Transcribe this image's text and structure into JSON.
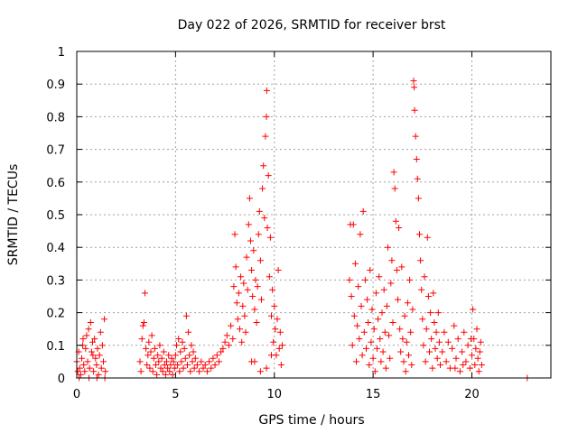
{
  "chart_data": {
    "type": "scatter",
    "title": "Day 022 of 2026, SRMTID for receiver brst",
    "xlabel": "GPS time / hours",
    "ylabel": "SRMTID / TECUs",
    "xlim": [
      0,
      24
    ],
    "ylim": [
      0,
      1
    ],
    "xticks": [
      0,
      5,
      10,
      15,
      20
    ],
    "xtick_labels": [
      "0",
      "5",
      "10",
      "15",
      "20"
    ],
    "yticks": [
      0,
      0.1,
      0.2,
      0.3,
      0.4,
      0.5,
      0.6,
      0.7,
      0.8,
      0.9,
      1
    ],
    "ytick_labels": [
      "0",
      "0.1",
      "0.2",
      "0.3",
      "0.4",
      "0.5",
      "0.6",
      "0.7",
      "0.8",
      "0.9",
      "1"
    ],
    "grid": true,
    "marker": "+",
    "series": [
      {
        "name": "SRMTID",
        "color": "#ff0000",
        "points": [
          [
            0.0,
            0.05
          ],
          [
            0.05,
            0.02
          ],
          [
            0.1,
            0.08
          ],
          [
            0.15,
            0.03
          ],
          [
            0.2,
            0.01
          ],
          [
            0.25,
            0.06
          ],
          [
            0.3,
            0.1
          ],
          [
            0.35,
            0.04
          ],
          [
            0.4,
            0.02
          ],
          [
            0.45,
            0.09
          ],
          [
            0.5,
            0.13
          ],
          [
            0.55,
            0.05
          ],
          [
            0.6,
            0.15
          ],
          [
            0.65,
            0.03
          ],
          [
            0.7,
            0.17
          ],
          [
            0.75,
            0.08
          ],
          [
            0.8,
            0.11
          ],
          [
            0.85,
            0.02
          ],
          [
            0.9,
            0.12
          ],
          [
            0.95,
            0.06
          ],
          [
            1.0,
            0.04
          ],
          [
            1.05,
            0.09
          ],
          [
            1.1,
            0.01
          ],
          [
            1.15,
            0.07
          ],
          [
            1.2,
            0.14
          ],
          [
            1.25,
            0.03
          ],
          [
            1.3,
            0.1
          ],
          [
            1.35,
            0.05
          ],
          [
            1.4,
            0.18
          ],
          [
            1.45,
            0.02
          ],
          [
            0.12,
            0.0
          ],
          [
            0.62,
            0.0
          ],
          [
            1.02,
            0.0
          ],
          [
            1.42,
            0.0
          ],
          [
            0.32,
            0.12
          ],
          [
            0.82,
            0.07
          ],
          [
            3.2,
            0.05
          ],
          [
            3.25,
            0.02
          ],
          [
            3.3,
            0.12
          ],
          [
            3.35,
            0.16
          ],
          [
            3.4,
            0.17
          ],
          [
            3.45,
            0.26
          ],
          [
            3.5,
            0.09
          ],
          [
            3.55,
            0.04
          ],
          [
            3.6,
            0.07
          ],
          [
            3.65,
            0.11
          ],
          [
            3.7,
            0.03
          ],
          [
            3.75,
            0.08
          ],
          [
            3.8,
            0.13
          ],
          [
            3.85,
            0.02
          ],
          [
            3.9,
            0.06
          ],
          [
            3.95,
            0.09
          ],
          [
            4.0,
            0.04
          ],
          [
            4.05,
            0.01
          ],
          [
            4.1,
            0.07
          ],
          [
            4.15,
            0.05
          ],
          [
            4.2,
            0.1
          ],
          [
            4.25,
            0.03
          ],
          [
            4.3,
            0.06
          ],
          [
            4.35,
            0.02
          ],
          [
            4.4,
            0.08
          ],
          [
            4.45,
            0.04
          ],
          [
            4.5,
            0.01
          ],
          [
            4.55,
            0.05
          ],
          [
            4.6,
            0.03
          ],
          [
            4.65,
            0.07
          ],
          [
            4.7,
            0.02
          ],
          [
            4.75,
            0.04
          ],
          [
            4.8,
            0.06
          ],
          [
            4.85,
            0.01
          ],
          [
            4.9,
            0.05
          ],
          [
            4.95,
            0.03
          ],
          [
            5.0,
            0.07
          ],
          [
            5.05,
            0.1
          ],
          [
            5.1,
            0.04
          ],
          [
            5.15,
            0.12
          ],
          [
            5.2,
            0.02
          ],
          [
            5.25,
            0.08
          ],
          [
            5.3,
            0.05
          ],
          [
            5.35,
            0.11
          ],
          [
            5.4,
            0.03
          ],
          [
            5.45,
            0.09
          ],
          [
            5.5,
            0.06
          ],
          [
            5.55,
            0.19
          ],
          [
            5.6,
            0.04
          ],
          [
            5.65,
            0.14
          ],
          [
            5.7,
            0.07
          ],
          [
            5.75,
            0.02
          ],
          [
            5.8,
            0.1
          ],
          [
            5.85,
            0.05
          ],
          [
            5.9,
            0.08
          ],
          [
            5.95,
            0.03
          ],
          [
            6.0,
            0.06
          ],
          [
            6.1,
            0.04
          ],
          [
            6.2,
            0.02
          ],
          [
            6.3,
            0.05
          ],
          [
            6.4,
            0.03
          ],
          [
            6.5,
            0.04
          ],
          [
            6.6,
            0.02
          ],
          [
            6.7,
            0.05
          ],
          [
            6.8,
            0.03
          ],
          [
            6.9,
            0.06
          ],
          [
            7.0,
            0.04
          ],
          [
            7.1,
            0.07
          ],
          [
            7.2,
            0.05
          ],
          [
            7.3,
            0.08
          ],
          [
            7.4,
            0.09
          ],
          [
            7.5,
            0.11
          ],
          [
            7.6,
            0.13
          ],
          [
            7.7,
            0.1
          ],
          [
            7.8,
            0.16
          ],
          [
            7.9,
            0.12
          ],
          [
            7.95,
            0.28
          ],
          [
            8.0,
            0.44
          ],
          [
            8.05,
            0.34
          ],
          [
            8.1,
            0.23
          ],
          [
            8.15,
            0.18
          ],
          [
            8.2,
            0.26
          ],
          [
            8.25,
            0.15
          ],
          [
            8.3,
            0.31
          ],
          [
            8.35,
            0.11
          ],
          [
            8.4,
            0.22
          ],
          [
            8.45,
            0.29
          ],
          [
            8.5,
            0.19
          ],
          [
            8.55,
            0.14
          ],
          [
            8.6,
            0.37
          ],
          [
            8.65,
            0.27
          ],
          [
            8.7,
            0.47
          ],
          [
            8.75,
            0.55
          ],
          [
            8.8,
            0.42
          ],
          [
            8.85,
            0.33
          ],
          [
            8.9,
            0.25
          ],
          [
            8.95,
            0.39
          ],
          [
            9.0,
            0.21
          ],
          [
            9.05,
            0.3
          ],
          [
            9.1,
            0.17
          ],
          [
            9.15,
            0.28
          ],
          [
            9.2,
            0.44
          ],
          [
            9.25,
            0.51
          ],
          [
            9.3,
            0.36
          ],
          [
            9.35,
            0.24
          ],
          [
            9.4,
            0.58
          ],
          [
            9.45,
            0.65
          ],
          [
            9.5,
            0.49
          ],
          [
            9.55,
            0.74
          ],
          [
            9.6,
            0.8
          ],
          [
            9.62,
            0.88
          ],
          [
            9.65,
            0.46
          ],
          [
            9.7,
            0.62
          ],
          [
            9.75,
            0.31
          ],
          [
            9.8,
            0.43
          ],
          [
            9.85,
            0.19
          ],
          [
            9.9,
            0.27
          ],
          [
            9.95,
            0.11
          ],
          [
            10.0,
            0.22
          ],
          [
            10.05,
            0.15
          ],
          [
            10.1,
            0.07
          ],
          [
            10.15,
            0.18
          ],
          [
            10.2,
            0.33
          ],
          [
            10.25,
            0.09
          ],
          [
            10.3,
            0.14
          ],
          [
            10.35,
            0.04
          ],
          [
            9.0,
            0.05
          ],
          [
            9.3,
            0.02
          ],
          [
            9.6,
            0.03
          ],
          [
            10.4,
            0.1
          ],
          [
            8.85,
            0.05
          ],
          [
            9.85,
            0.07
          ],
          [
            13.8,
            0.3
          ],
          [
            13.85,
            0.47
          ],
          [
            13.9,
            0.25
          ],
          [
            13.95,
            0.1
          ],
          [
            14.0,
            0.47
          ],
          [
            14.05,
            0.19
          ],
          [
            14.1,
            0.35
          ],
          [
            14.15,
            0.05
          ],
          [
            14.2,
            0.16
          ],
          [
            14.25,
            0.28
          ],
          [
            14.3,
            0.12
          ],
          [
            14.35,
            0.44
          ],
          [
            14.4,
            0.22
          ],
          [
            14.45,
            0.07
          ],
          [
            14.5,
            0.51
          ],
          [
            14.55,
            0.14
          ],
          [
            14.6,
            0.3
          ],
          [
            14.65,
            0.09
          ],
          [
            14.7,
            0.24
          ],
          [
            14.75,
            0.17
          ],
          [
            14.8,
            0.04
          ],
          [
            14.85,
            0.33
          ],
          [
            14.9,
            0.11
          ],
          [
            14.95,
            0.21
          ],
          [
            15.0,
            0.06
          ],
          [
            15.05,
            0.15
          ],
          [
            15.1,
            0.02
          ],
          [
            15.15,
            0.26
          ],
          [
            15.2,
            0.09
          ],
          [
            15.25,
            0.18
          ],
          [
            15.3,
            0.31
          ],
          [
            15.35,
            0.12
          ],
          [
            15.4,
            0.05
          ],
          [
            15.45,
            0.2
          ],
          [
            15.5,
            0.08
          ],
          [
            15.55,
            0.27
          ],
          [
            15.6,
            0.14
          ],
          [
            15.65,
            0.03
          ],
          [
            15.7,
            0.22
          ],
          [
            15.75,
            0.4
          ],
          [
            15.8,
            0.13
          ],
          [
            15.85,
            0.06
          ],
          [
            15.9,
            0.29
          ],
          [
            15.95,
            0.36
          ],
          [
            16.0,
            0.17
          ],
          [
            16.05,
            0.63
          ],
          [
            16.1,
            0.58
          ],
          [
            16.15,
            0.48
          ],
          [
            16.2,
            0.33
          ],
          [
            16.25,
            0.24
          ],
          [
            16.3,
            0.46
          ],
          [
            16.35,
            0.15
          ],
          [
            16.4,
            0.08
          ],
          [
            16.45,
            0.34
          ],
          [
            16.5,
            0.12
          ],
          [
            16.55,
            0.05
          ],
          [
            16.6,
            0.19
          ],
          [
            16.65,
            0.02
          ],
          [
            16.7,
            0.11
          ],
          [
            16.75,
            0.23
          ],
          [
            16.8,
            0.07
          ],
          [
            16.85,
            0.3
          ],
          [
            16.9,
            0.14
          ],
          [
            16.95,
            0.04
          ],
          [
            17.0,
            0.21
          ],
          [
            17.05,
            0.91
          ],
          [
            17.08,
            0.89
          ],
          [
            17.1,
            0.82
          ],
          [
            17.15,
            0.74
          ],
          [
            17.2,
            0.67
          ],
          [
            17.25,
            0.61
          ],
          [
            17.3,
            0.55
          ],
          [
            17.35,
            0.44
          ],
          [
            17.4,
            0.36
          ],
          [
            17.45,
            0.27
          ],
          [
            17.5,
            0.18
          ],
          [
            17.55,
            0.1
          ],
          [
            17.6,
            0.31
          ],
          [
            17.65,
            0.05
          ],
          [
            17.7,
            0.15
          ],
          [
            17.75,
            0.43
          ],
          [
            17.8,
            0.25
          ],
          [
            17.85,
            0.08
          ],
          [
            17.9,
            0.2
          ],
          [
            17.95,
            0.12
          ],
          [
            18.0,
            0.03
          ],
          [
            18.05,
            0.26
          ],
          [
            18.1,
            0.17
          ],
          [
            18.15,
            0.09
          ],
          [
            18.2,
            0.14
          ],
          [
            18.25,
            0.06
          ],
          [
            18.3,
            0.2
          ],
          [
            18.35,
            0.11
          ],
          [
            18.4,
            0.04
          ],
          [
            18.5,
            0.08
          ],
          [
            18.6,
            0.14
          ],
          [
            18.7,
            0.05
          ],
          [
            18.8,
            0.11
          ],
          [
            18.9,
            0.03
          ],
          [
            19.0,
            0.09
          ],
          [
            19.1,
            0.16
          ],
          [
            19.2,
            0.06
          ],
          [
            19.3,
            0.12
          ],
          [
            19.4,
            0.02
          ],
          [
            19.5,
            0.08
          ],
          [
            19.6,
            0.14
          ],
          [
            19.7,
            0.05
          ],
          [
            19.8,
            0.1
          ],
          [
            19.9,
            0.03
          ],
          [
            20.0,
            0.07
          ],
          [
            20.05,
            0.21
          ],
          [
            20.1,
            0.12
          ],
          [
            20.15,
            0.04
          ],
          [
            20.2,
            0.09
          ],
          [
            20.25,
            0.15
          ],
          [
            20.3,
            0.06
          ],
          [
            20.35,
            0.02
          ],
          [
            20.4,
            0.08
          ],
          [
            20.45,
            0.11
          ],
          [
            20.5,
            0.04
          ],
          [
            19.15,
            0.03
          ],
          [
            19.55,
            0.04
          ],
          [
            19.95,
            0.12
          ],
          [
            22.8,
            0.0
          ]
        ]
      }
    ]
  }
}
